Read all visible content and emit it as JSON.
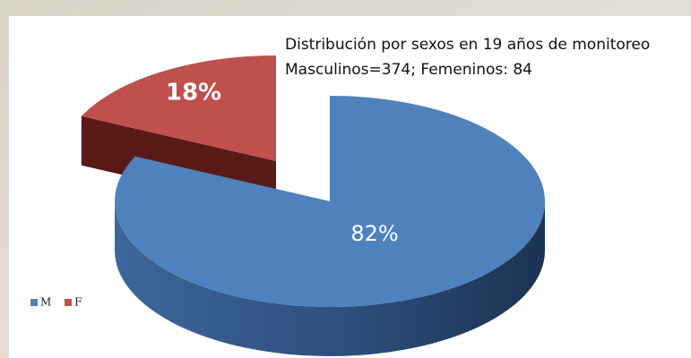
{
  "chart_data": {
    "type": "pie3d",
    "title": "Distribución por sexos en 19 años de monitoreo",
    "subtitle": "Masculinos=374; Femeninos: 84",
    "categories": [
      "M",
      "F"
    ],
    "values": [
      82,
      18
    ],
    "value_labels": [
      "82%",
      "18%"
    ],
    "colors": [
      "#4f81bd",
      "#c0504d"
    ],
    "legend": "left"
  }
}
